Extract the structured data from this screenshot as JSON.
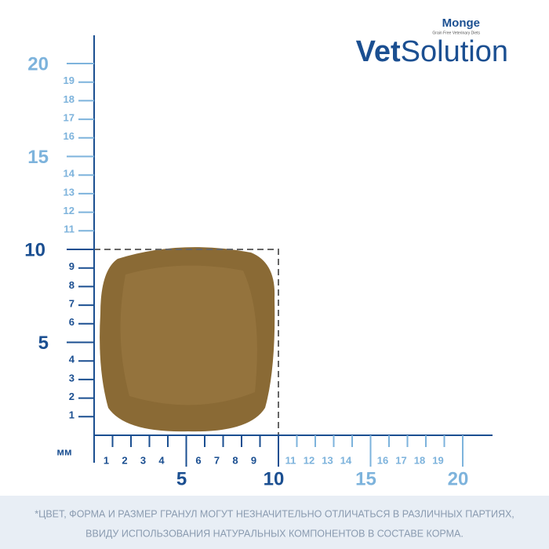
{
  "logo": {
    "brand": "Monge",
    "tagline": "Grain Free Veterinary Diets",
    "product_bold": "Vet",
    "product": "Solution"
  },
  "ruler": {
    "unit": "мм",
    "y_ticks": [
      1,
      2,
      3,
      4,
      5,
      6,
      7,
      8,
      9,
      10,
      11,
      12,
      13,
      14,
      15,
      16,
      17,
      18,
      19,
      20
    ],
    "x_ticks": [
      1,
      2,
      3,
      4,
      5,
      6,
      7,
      8,
      9,
      10,
      11,
      12,
      13,
      14,
      15,
      16,
      17,
      18,
      19,
      20
    ]
  },
  "disclaimer": {
    "line1": "*ЦВЕТ, ФОРМА И РАЗМЕР ГРАНУЛ МОГУТ НЕЗНАЧИТЕЛЬНО ОТЛИЧАТЬСЯ В РАЗЛИЧНЫХ ПАРТИЯХ,",
    "line2": "ВВИДУ ИСПОЛЬЗОВАНИЯ НАТУРАЛЬНЫХ КОМПОНЕНТОВ В СОСТАВЕ КОРМА."
  }
}
